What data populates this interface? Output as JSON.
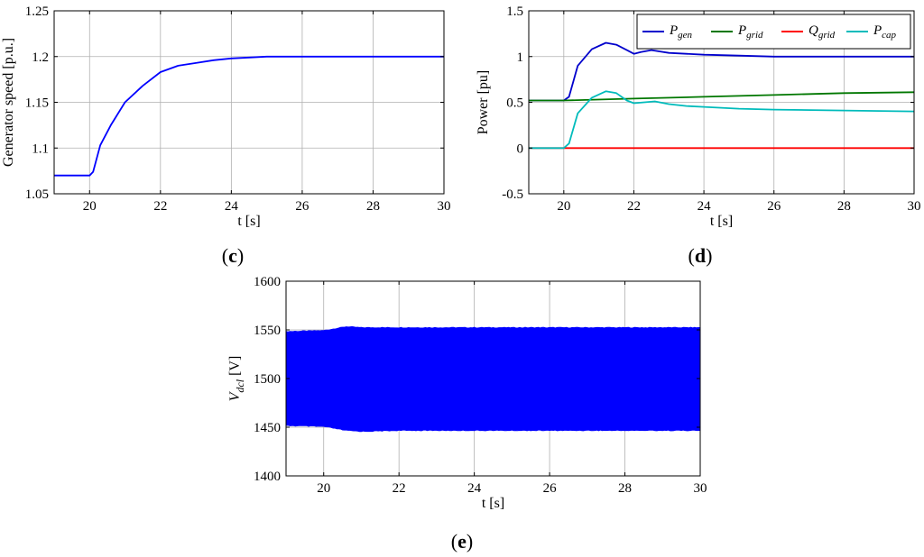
{
  "chart_data": [
    {
      "id": "c",
      "type": "line",
      "panel_label": "c",
      "xlabel": "t [s]",
      "ylabel": "Generator speed [p.u.]",
      "xlim": [
        19,
        30
      ],
      "ylim": [
        1.05,
        1.25
      ],
      "xticks": [
        20,
        22,
        24,
        26,
        28,
        30
      ],
      "yticks": [
        1.05,
        1.1,
        1.15,
        1.2,
        1.25
      ],
      "ytick_labels": [
        "1.05",
        "1.1",
        "1.15",
        "1.2",
        "1.25"
      ],
      "grid": true,
      "series": [
        {
          "color": "#0000ff",
          "x": [
            19.0,
            20.0,
            20.1,
            20.3,
            20.6,
            21.0,
            21.5,
            22.0,
            22.5,
            23.0,
            23.5,
            24.0,
            24.5,
            25.0,
            26.0,
            28.0,
            30.0
          ],
          "values": [
            1.07,
            1.07,
            1.074,
            1.103,
            1.125,
            1.15,
            1.168,
            1.183,
            1.19,
            1.193,
            1.196,
            1.198,
            1.199,
            1.2,
            1.2,
            1.2,
            1.2
          ]
        }
      ]
    },
    {
      "id": "d",
      "type": "line",
      "panel_label": "d",
      "xlabel": "t [s]",
      "ylabel": "Power [pu]",
      "xlim": [
        19,
        30
      ],
      "ylim": [
        -0.5,
        1.5
      ],
      "xticks": [
        20,
        22,
        24,
        26,
        28,
        30
      ],
      "yticks": [
        -0.5,
        0,
        0.5,
        1,
        1.5
      ],
      "ytick_labels": [
        "-0.5",
        "0",
        "0.5",
        "1",
        "1.5"
      ],
      "grid": true,
      "legend_position": "top-right",
      "series": [
        {
          "name_base": "P",
          "name_sub": "gen",
          "color": "#0000cc",
          "x": [
            19.0,
            20.0,
            20.15,
            20.4,
            20.8,
            21.2,
            21.5,
            21.8,
            22.0,
            22.2,
            22.5,
            23.0,
            23.5,
            24.0,
            25.0,
            26.0,
            28.0,
            30.0
          ],
          "values": [
            0.52,
            0.52,
            0.56,
            0.9,
            1.08,
            1.15,
            1.13,
            1.07,
            1.03,
            1.05,
            1.07,
            1.04,
            1.03,
            1.02,
            1.01,
            1.0,
            1.0,
            1.0
          ]
        },
        {
          "name_base": "P",
          "name_sub": "grid",
          "color": "#007700",
          "x": [
            19.0,
            20.0,
            22.0,
            24.0,
            26.0,
            28.0,
            30.0
          ],
          "values": [
            0.52,
            0.52,
            0.54,
            0.56,
            0.58,
            0.6,
            0.61
          ]
        },
        {
          "name_base": "Q",
          "name_sub": "grid",
          "color": "#ff0000",
          "x": [
            19.0,
            30.0
          ],
          "values": [
            0.0,
            0.0
          ]
        },
        {
          "name_base": "P",
          "name_sub": "cap",
          "color": "#00bbbb",
          "x": [
            19.0,
            20.0,
            20.15,
            20.4,
            20.8,
            21.2,
            21.5,
            21.8,
            22.0,
            22.3,
            22.6,
            23.0,
            23.5,
            24.0,
            25.0,
            26.0,
            28.0,
            30.0
          ],
          "values": [
            0.0,
            0.0,
            0.05,
            0.38,
            0.55,
            0.62,
            0.6,
            0.52,
            0.49,
            0.5,
            0.51,
            0.48,
            0.46,
            0.45,
            0.43,
            0.42,
            0.41,
            0.4
          ]
        }
      ]
    },
    {
      "id": "e",
      "type": "area",
      "panel_label": "e",
      "xlabel": "t [s]",
      "ylabel_base": "V",
      "ylabel_sub": "dcl",
      "ylabel_unit": " [V]",
      "xlim": [
        19,
        30
      ],
      "ylim": [
        1400,
        1600
      ],
      "xticks": [
        20,
        22,
        24,
        26,
        28,
        30
      ],
      "yticks": [
        1400,
        1450,
        1500,
        1550,
        1600
      ],
      "ytick_labels": [
        "1400",
        "1450",
        "1500",
        "1550",
        "1600"
      ],
      "grid": true,
      "series": [
        {
          "color": "#0000ff",
          "x": [
            19.0,
            20.0,
            20.3,
            20.6,
            21.0,
            22.0,
            24.0,
            26.0,
            28.0,
            30.0
          ],
          "upper": [
            1548,
            1549,
            1551,
            1553,
            1552,
            1552,
            1552,
            1552,
            1552,
            1552
          ],
          "lower": [
            1452,
            1451,
            1449,
            1447,
            1446,
            1447,
            1447,
            1447,
            1447,
            1447
          ]
        }
      ]
    }
  ]
}
